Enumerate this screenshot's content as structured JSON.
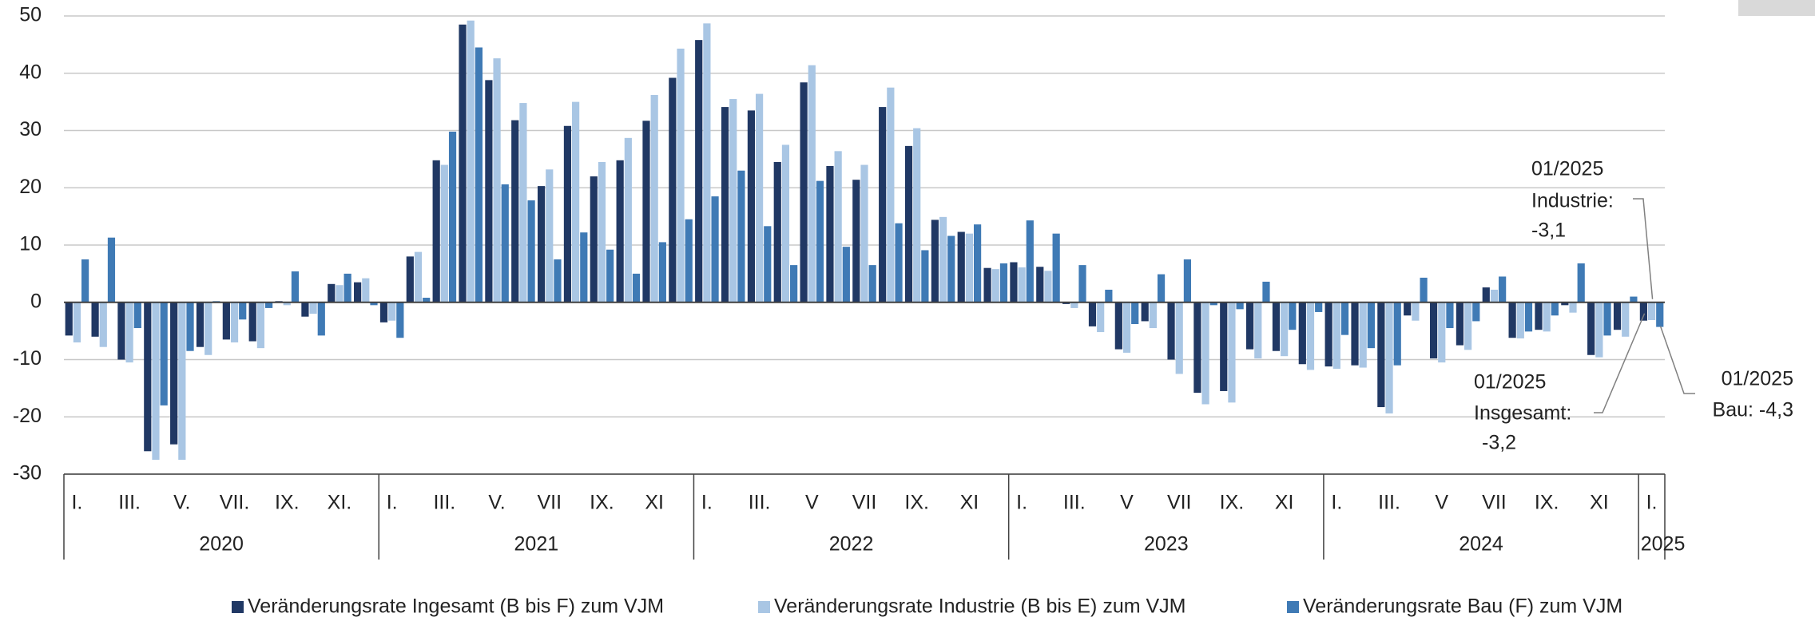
{
  "chart_data": {
    "type": "bar",
    "categories": [
      "I.",
      null,
      "III.",
      null,
      "V.",
      null,
      "VII.",
      null,
      "IX.",
      null,
      "XI.",
      null,
      "I.",
      null,
      "III.",
      null,
      "V.",
      null,
      "VII",
      null,
      "IX.",
      null,
      "XI",
      null,
      "I.",
      null,
      "III.",
      null,
      "V",
      null,
      "VII",
      null,
      "IX.",
      null,
      "XI",
      null,
      "I.",
      null,
      "III.",
      null,
      "V",
      null,
      "VII",
      null,
      "IX.",
      null,
      "XI",
      null,
      "I.",
      null,
      "III.",
      null,
      "V",
      null,
      "VII",
      null,
      "IX.",
      null,
      "XI",
      null,
      "I."
    ],
    "years": [
      "2020",
      "2021",
      "2022",
      "2023",
      "2024",
      "2025"
    ],
    "series": [
      {
        "name": "Veränderungsrate Ingesamt (B bis F) zum VJM",
        "color": "#203864",
        "values": [
          -5.8,
          -6,
          -10,
          -26,
          -24.8,
          -7.8,
          -6.5,
          -6.8,
          0.2,
          -2.5,
          3.2,
          3.5,
          -3.5,
          8,
          24.8,
          48.5,
          38.8,
          31.8,
          20.3,
          30.8,
          22,
          24.8,
          31.7,
          39.2,
          45.8,
          34.1,
          33.5,
          24.5,
          38.4,
          23.8,
          21.4,
          34.1,
          27.3,
          14.4,
          12.3,
          6,
          7,
          6.2,
          -0.3,
          -4.2,
          -8.2,
          -3.3,
          -10,
          -15.8,
          -15.5,
          -8.2,
          -8.5,
          -10.8,
          -11.2,
          -11,
          -18.3,
          -2.3,
          -9.8,
          -7.5,
          2.6,
          -6.2,
          -4.8,
          -0.5,
          -9.2,
          -4.8,
          -3.2
        ]
      },
      {
        "name": "Veränderungsrate Industrie (B bis E) zum VJM",
        "color": "#a9c6e4",
        "values": [
          -7,
          -7.8,
          -10.5,
          -27.5,
          -27.5,
          -9.2,
          -7,
          -8,
          -0.5,
          -2,
          3,
          4.2,
          -3.2,
          8.8,
          24,
          49.2,
          42.6,
          34.8,
          23.2,
          35,
          24.5,
          28.7,
          36.2,
          44.3,
          48.7,
          35.5,
          36.4,
          27.5,
          41.4,
          26.4,
          24,
          37.5,
          30.4,
          14.9,
          12,
          5.8,
          6.1,
          5.5,
          -1,
          -5.2,
          -8.8,
          -4.5,
          -12.5,
          -17.8,
          -17.5,
          -9.8,
          -9.4,
          -11.8,
          -11.6,
          -11.4,
          -19.4,
          -3.2,
          -10.5,
          -8.3,
          2.2,
          -6.3,
          -5.1,
          -1.8,
          -9.6,
          -6,
          -3.1
        ]
      },
      {
        "name": "Veränderungsrate Bau (F) zum VJM",
        "color": "#3f7ab5",
        "values": [
          7.5,
          11.3,
          -4.5,
          -18,
          -8.5,
          0.2,
          -3,
          -1,
          5.4,
          -5.8,
          5,
          -0.5,
          -6.2,
          0.8,
          29.8,
          44.5,
          20.6,
          17.8,
          7.5,
          12.2,
          9.2,
          5,
          10.5,
          14.5,
          18.5,
          23,
          13.3,
          6.5,
          21.2,
          9.7,
          6.5,
          13.8,
          9.1,
          11.6,
          13.6,
          6.8,
          14.3,
          12,
          6.5,
          2.2,
          -3.8,
          4.9,
          7.5,
          -0.5,
          -1.2,
          3.6,
          -4.8,
          -1.7,
          -5.7,
          -8,
          -11,
          4.3,
          -4.5,
          -3.3,
          4.5,
          -5.1,
          -2.3,
          6.8,
          -5.8,
          1,
          -4.3
        ]
      }
    ],
    "ylim": [
      -30,
      50
    ],
    "yticks": [
      -30,
      -20,
      -10,
      0,
      10,
      20,
      30,
      40,
      50
    ],
    "grid": true,
    "legend": "bottom",
    "annotations": [
      {
        "lines": [
          "01/2025",
          "Industrie:",
          "-3,1"
        ]
      },
      {
        "lines": [
          "01/2025",
          "Insgesamt:",
          "-3,2"
        ]
      },
      {
        "lines": [
          "01/2025",
          "Bau: -4,3"
        ]
      }
    ]
  }
}
